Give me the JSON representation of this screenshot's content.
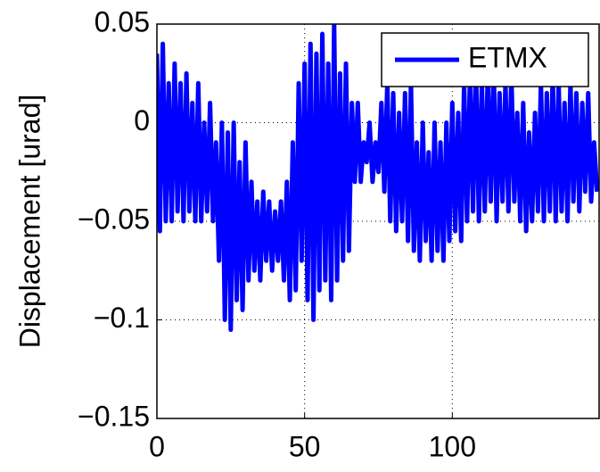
{
  "chart_data": {
    "type": "line",
    "y_label": "Displacement [urad]",
    "xlim": [
      0,
      150
    ],
    "ylim": [
      -0.15,
      0.05
    ],
    "xticks": [
      0,
      50,
      100
    ],
    "yticks": [
      {
        "value": -0.15,
        "label": "−0.15"
      },
      {
        "value": -0.1,
        "label": "−0.1"
      },
      {
        "value": -0.05,
        "label": "−0.05"
      },
      0,
      0.05
    ],
    "grid": true,
    "legend": "northeast",
    "x": [
      0,
      1,
      2,
      3,
      4,
      5,
      6,
      7,
      8,
      9,
      10,
      11,
      12,
      13,
      14,
      15,
      16,
      17,
      18,
      19,
      20,
      21,
      22,
      23,
      24,
      25,
      26,
      27,
      28,
      29,
      30,
      31,
      32,
      33,
      34,
      35,
      36,
      37,
      38,
      39,
      40,
      41,
      42,
      43,
      44,
      45,
      46,
      47,
      48,
      49,
      50,
      51,
      52,
      53,
      54,
      55,
      56,
      57,
      58,
      59,
      60,
      61,
      62,
      63,
      64,
      65,
      66,
      67,
      68,
      69,
      70,
      71,
      72,
      73,
      74,
      75,
      76,
      77,
      78,
      79,
      80,
      81,
      82,
      83,
      84,
      85,
      86,
      87,
      88,
      89,
      90,
      91,
      92,
      93,
      94,
      95,
      96,
      97,
      98,
      99,
      100,
      101,
      102,
      103,
      104,
      105,
      106,
      107,
      108,
      109,
      110,
      111,
      112,
      113,
      114,
      115,
      116,
      117,
      118,
      119,
      120,
      121,
      122,
      123,
      124,
      125,
      126,
      127,
      128,
      129,
      130,
      131,
      132,
      133,
      134,
      135,
      136,
      137,
      138,
      139,
      140,
      141,
      142,
      143,
      144,
      145,
      146,
      147,
      148,
      149
    ],
    "series": [
      {
        "name": "ETMX",
        "color": "#0000ff",
        "values": [
          0.035,
          -0.055,
          0.04,
          -0.05,
          0.02,
          -0.05,
          0.03,
          -0.045,
          0.02,
          -0.05,
          0.025,
          -0.045,
          0.01,
          -0.05,
          0.02,
          -0.05,
          0.0,
          -0.045,
          0.01,
          -0.05,
          -0.01,
          -0.07,
          0.0,
          -0.1,
          -0.005,
          -0.105,
          0.0,
          -0.09,
          -0.02,
          -0.095,
          -0.01,
          -0.08,
          -0.03,
          -0.075,
          -0.04,
          -0.08,
          -0.035,
          -0.07,
          -0.04,
          -0.075,
          -0.045,
          -0.07,
          -0.04,
          -0.08,
          -0.03,
          -0.09,
          -0.01,
          -0.085,
          0.02,
          -0.07,
          0.03,
          -0.09,
          0.04,
          -0.1,
          0.035,
          -0.085,
          0.045,
          -0.08,
          0.03,
          -0.09,
          0.05,
          -0.08,
          0.025,
          -0.07,
          0.03,
          -0.065,
          0.01,
          -0.03,
          0.01,
          -0.03,
          -0.01,
          -0.02,
          0.0,
          -0.03,
          -0.01,
          -0.025,
          0.01,
          -0.035,
          0.02,
          -0.05,
          0.015,
          -0.055,
          0.005,
          -0.05,
          0.015,
          -0.06,
          0.02,
          -0.065,
          -0.01,
          -0.07,
          0.0,
          -0.06,
          -0.015,
          -0.07,
          0.0,
          -0.065,
          -0.01,
          -0.07,
          0.0,
          -0.06,
          0.01,
          -0.055,
          0.005,
          -0.06,
          0.02,
          -0.05,
          0.025,
          -0.045,
          0.03,
          -0.05,
          0.02,
          -0.045,
          0.025,
          -0.04,
          0.03,
          -0.05,
          0.015,
          -0.04,
          0.02,
          -0.045,
          0.025,
          -0.04,
          0.005,
          -0.05,
          0.01,
          -0.055,
          -0.005,
          -0.05,
          0.005,
          -0.045,
          0.02,
          -0.05,
          0.015,
          -0.045,
          0.025,
          -0.05,
          0.02,
          -0.045,
          0.01,
          -0.05,
          0.02,
          -0.04,
          0.015,
          -0.045,
          0.01,
          -0.035,
          0.015,
          -0.04,
          -0.01,
          -0.035
        ]
      }
    ]
  }
}
